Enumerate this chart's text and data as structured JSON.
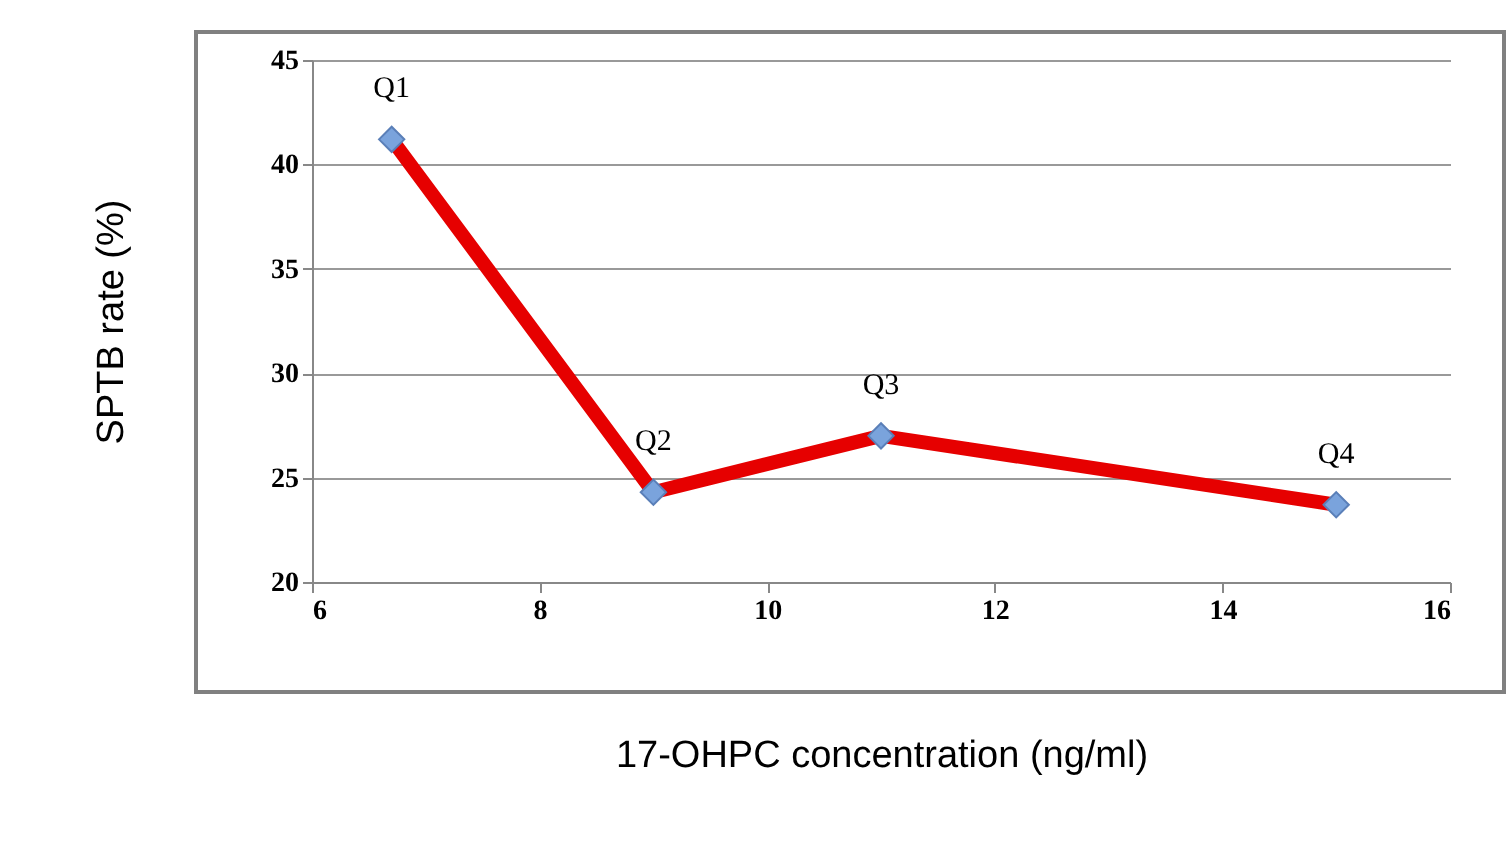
{
  "chart_data": {
    "type": "line",
    "xlabel": "17-OHPC concentration (ng/ml)",
    "ylabel": "SPTB rate (%)",
    "x": [
      6.7,
      9.0,
      11.0,
      15.0
    ],
    "series": [
      {
        "color": "#e60000",
        "values": [
          41.2,
          24.3,
          27.0,
          23.7
        ]
      }
    ],
    "marker": "diamond",
    "line_style": "solid",
    "grid": "y",
    "xlim": [
      6,
      16
    ],
    "xticks": [
      6,
      8,
      10,
      12,
      14,
      16
    ],
    "ylim": [
      20,
      45
    ],
    "yticks": [
      20,
      25,
      30,
      35,
      40,
      45
    ],
    "annotations": [
      {
        "text": "Q1",
        "x": 6.7,
        "y": 41.2
      },
      {
        "text": "Q2",
        "x": 9.0,
        "y": 24.3
      },
      {
        "text": "Q3",
        "x": 11.0,
        "y": 27.0
      },
      {
        "text": "Q4",
        "x": 15.0,
        "y": 23.7
      }
    ]
  }
}
